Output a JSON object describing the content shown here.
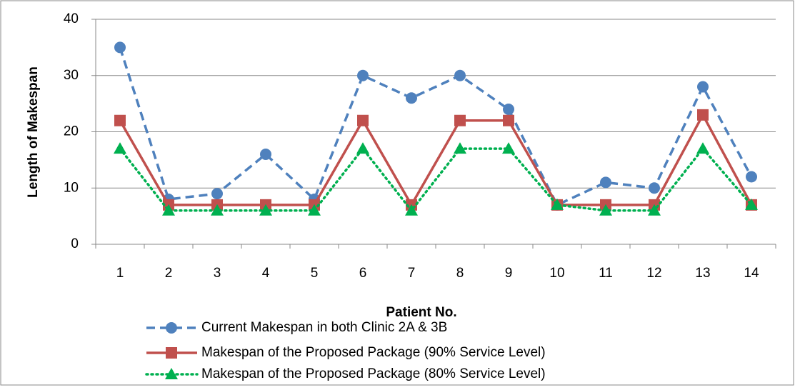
{
  "chart_data": {
    "type": "line",
    "x_label": "Patient No.",
    "y_label": "Length of Makespan",
    "categories": [
      "1",
      "2",
      "3",
      "4",
      "5",
      "6",
      "7",
      "8",
      "9",
      "10",
      "11",
      "12",
      "13",
      "14"
    ],
    "series": [
      {
        "name": "Current Makespan in both Clinic 2A & 3B",
        "color": "#4f81bd",
        "values": [
          35,
          8,
          9,
          16,
          8,
          30,
          26,
          30,
          24,
          7,
          11,
          10,
          28,
          12
        ]
      },
      {
        "name": "Makespan of the Proposed Package (90% Service Level)",
        "color": "#c0504d",
        "values": [
          22,
          7,
          7,
          7,
          7,
          22,
          7,
          22,
          22,
          7,
          7,
          7,
          23,
          7
        ]
      },
      {
        "name": "Makespan of the Proposed Package (80% Service Level)",
        "color": "#00b050",
        "values": [
          17,
          6,
          6,
          6,
          6,
          17,
          6,
          17,
          17,
          7,
          6,
          6,
          17,
          7
        ]
      }
    ],
    "ylim": [
      0,
      40
    ],
    "yticks": [
      0,
      10,
      20,
      30,
      40
    ],
    "grid": true,
    "legend": "bottom"
  }
}
